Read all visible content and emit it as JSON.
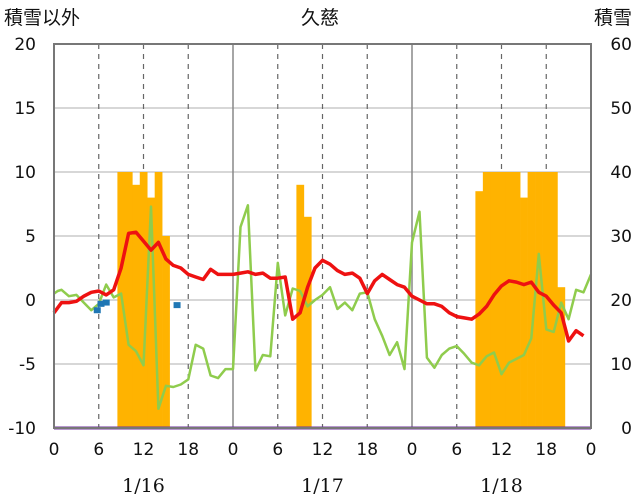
{
  "chart_data": {
    "type": "bar+line",
    "title": "久慈",
    "left_axis_label": "積雪以外",
    "right_axis_label": "積雪",
    "left_ylim": [
      -10,
      20
    ],
    "left_ticks": [
      "20",
      "15",
      "10",
      "5",
      "0",
      "-5",
      "-10"
    ],
    "right_ylim": [
      0,
      60
    ],
    "right_ticks": [
      "60",
      "50",
      "40",
      "30",
      "20",
      "10",
      "0"
    ],
    "x_tick_labels": [
      "0",
      "6",
      "12",
      "18",
      "0",
      "6",
      "12",
      "18",
      "0",
      "6",
      "12",
      "18",
      "0"
    ],
    "date_labels": [
      "1/16",
      "1/17",
      "1/18"
    ],
    "grid": "dashed vertical lines at 06 and 12 hours, solid at day boundaries",
    "x_hours_range": [
      0,
      72
    ],
    "series": [
      {
        "kind": "bar",
        "axis": "right",
        "color": "#ffb300",
        "x": [
          9,
          10,
          11,
          12,
          13,
          14,
          15,
          33,
          34,
          57,
          58,
          59,
          60,
          61,
          62,
          63,
          64,
          65,
          66,
          67,
          68
        ],
        "values": [
          40,
          40,
          38,
          40,
          36,
          40,
          30,
          38,
          33,
          37,
          40,
          40,
          40,
          40,
          40,
          36,
          40,
          40,
          40,
          40,
          22
        ]
      },
      {
        "kind": "line",
        "axis": "left",
        "color": "#8fcc4d",
        "x": [
          0,
          0.5,
          1,
          2,
          3,
          4,
          5,
          6,
          7,
          8,
          9,
          10,
          11,
          12,
          13,
          14,
          15,
          16,
          17,
          18,
          19,
          20,
          21,
          22,
          23,
          24,
          25,
          26,
          27,
          28,
          29,
          30,
          31,
          32,
          33,
          34,
          35,
          36,
          37,
          38,
          39,
          40,
          41,
          42,
          43,
          44,
          45,
          46,
          47,
          48,
          49,
          50,
          51,
          52,
          53,
          54,
          55,
          56,
          57,
          58,
          59,
          60,
          61,
          62,
          63,
          64,
          65,
          66,
          67,
          68,
          69,
          70,
          71,
          72
        ],
        "values": [
          0.5,
          0.7,
          0.8,
          0.3,
          0.4,
          -0.2,
          -0.8,
          -0.3,
          1.2,
          0.2,
          0.5,
          -3.5,
          -4,
          -5.1,
          7.3,
          -8.5,
          -6.7,
          -6.8,
          -6.6,
          -6.2,
          -3.5,
          -3.8,
          -5.9,
          -6.1,
          -5.4,
          -5.4,
          5.7,
          7.4,
          -5.5,
          -4.3,
          -4.4,
          2.9,
          -1.2,
          0.9,
          0.7,
          -0.5,
          0,
          0.4,
          1,
          -0.7,
          -0.2,
          -0.8,
          0.5,
          0.6,
          -1.5,
          -2.8,
          -4.3,
          -3.3,
          -5.4,
          4.5,
          6.9,
          -4.5,
          -5.3,
          -4.3,
          -3.8,
          -3.6,
          -4.2,
          -4.9,
          -5.1,
          -4.4,
          -4.1,
          -5.8,
          -4.9,
          -4.6,
          -4.3,
          -3,
          3.6,
          -2.3,
          -2.5,
          -0.2,
          -1.5,
          0.8,
          0.6,
          2
        ]
      },
      {
        "kind": "line",
        "axis": "left",
        "color": "#ee1111",
        "x": [
          0,
          1,
          2,
          3,
          4,
          5,
          6,
          7,
          8,
          9,
          10,
          11,
          12,
          13,
          14,
          15,
          16,
          17,
          18,
          19,
          20,
          21,
          22,
          23,
          24,
          25,
          26,
          27,
          28,
          29,
          30,
          31,
          32,
          33,
          34,
          35,
          36,
          37,
          38,
          39,
          40,
          41,
          42,
          43,
          44,
          45,
          46,
          47,
          48,
          49,
          50,
          51,
          52,
          53,
          54,
          55,
          56,
          57,
          58,
          59,
          60,
          61,
          62,
          63,
          64,
          65,
          66,
          67,
          68,
          69,
          70,
          71
        ],
        "values": [
          -1,
          -0.2,
          -0.2,
          -0.1,
          0.3,
          0.6,
          0.7,
          0.4,
          0.8,
          2.5,
          5.2,
          5.3,
          4.6,
          3.9,
          4.5,
          3.2,
          2.7,
          2.5,
          2,
          1.8,
          1.6,
          2.4,
          2,
          2,
          2,
          2.1,
          2.2,
          2,
          2.1,
          1.7,
          1.7,
          1.8,
          -1.5,
          -1,
          1,
          2.5,
          3.1,
          2.8,
          2.3,
          2,
          2.1,
          1.7,
          0.5,
          1.5,
          2,
          1.6,
          1.2,
          1,
          0.3,
          0,
          -0.3,
          -0.3,
          -0.5,
          -1,
          -1.3,
          -1.4,
          -1.5,
          -1.1,
          -0.5,
          0.4,
          1.1,
          1.5,
          1.4,
          1.2,
          1.4,
          0.6,
          0.3,
          -0.4,
          -1,
          -3.2,
          -2.4,
          -2.8
        ]
      },
      {
        "kind": "points",
        "axis": "left",
        "color": "#1f77b4",
        "x": [
          5.8,
          6.3,
          7,
          16.5
        ],
        "values": [
          -0.8,
          -0.3,
          -0.2,
          -0.4
        ]
      },
      {
        "kind": "line",
        "axis": "left",
        "color": "#7030a0",
        "x": [
          0,
          72
        ],
        "values": [
          -10,
          -10
        ]
      }
    ]
  }
}
